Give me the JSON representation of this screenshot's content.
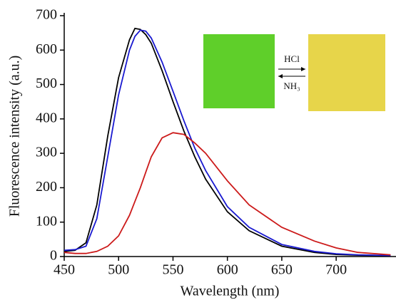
{
  "chart_data": {
    "type": "line",
    "x_label": "Wavelength (nm)",
    "y_label": "Fluorescence intensity (a.u.)",
    "x": [
      450,
      460,
      470,
      480,
      490,
      500,
      510,
      515,
      520,
      525,
      530,
      540,
      550,
      560,
      570,
      580,
      600,
      620,
      650,
      680,
      700,
      720,
      750
    ],
    "series": [
      {
        "color": "#000000",
        "values": [
          15,
          18,
          40,
          150,
          350,
          520,
          630,
          663,
          660,
          645,
          620,
          540,
          450,
          365,
          290,
          225,
          130,
          75,
          30,
          12,
          6,
          4,
          3
        ]
      },
      {
        "color": "#1a1ad0",
        "values": [
          18,
          20,
          30,
          110,
          290,
          470,
          600,
          640,
          658,
          655,
          635,
          565,
          480,
          395,
          315,
          250,
          145,
          85,
          35,
          15,
          8,
          5,
          3
        ]
      },
      {
        "color": "#cc1a1a",
        "values": [
          12,
          9,
          9,
          15,
          30,
          60,
          120,
          160,
          200,
          245,
          290,
          345,
          360,
          355,
          330,
          300,
          220,
          150,
          85,
          45,
          25,
          12,
          5
        ]
      }
    ],
    "xlim": [
      450,
      755
    ],
    "xticks": [
      450,
      500,
      550,
      600,
      650,
      700
    ],
    "ylim": [
      0,
      700
    ],
    "yticks": [
      0,
      100,
      200,
      300,
      400,
      500,
      600,
      700
    ],
    "annotations": [
      "HCl",
      "NH₃"
    ]
  }
}
